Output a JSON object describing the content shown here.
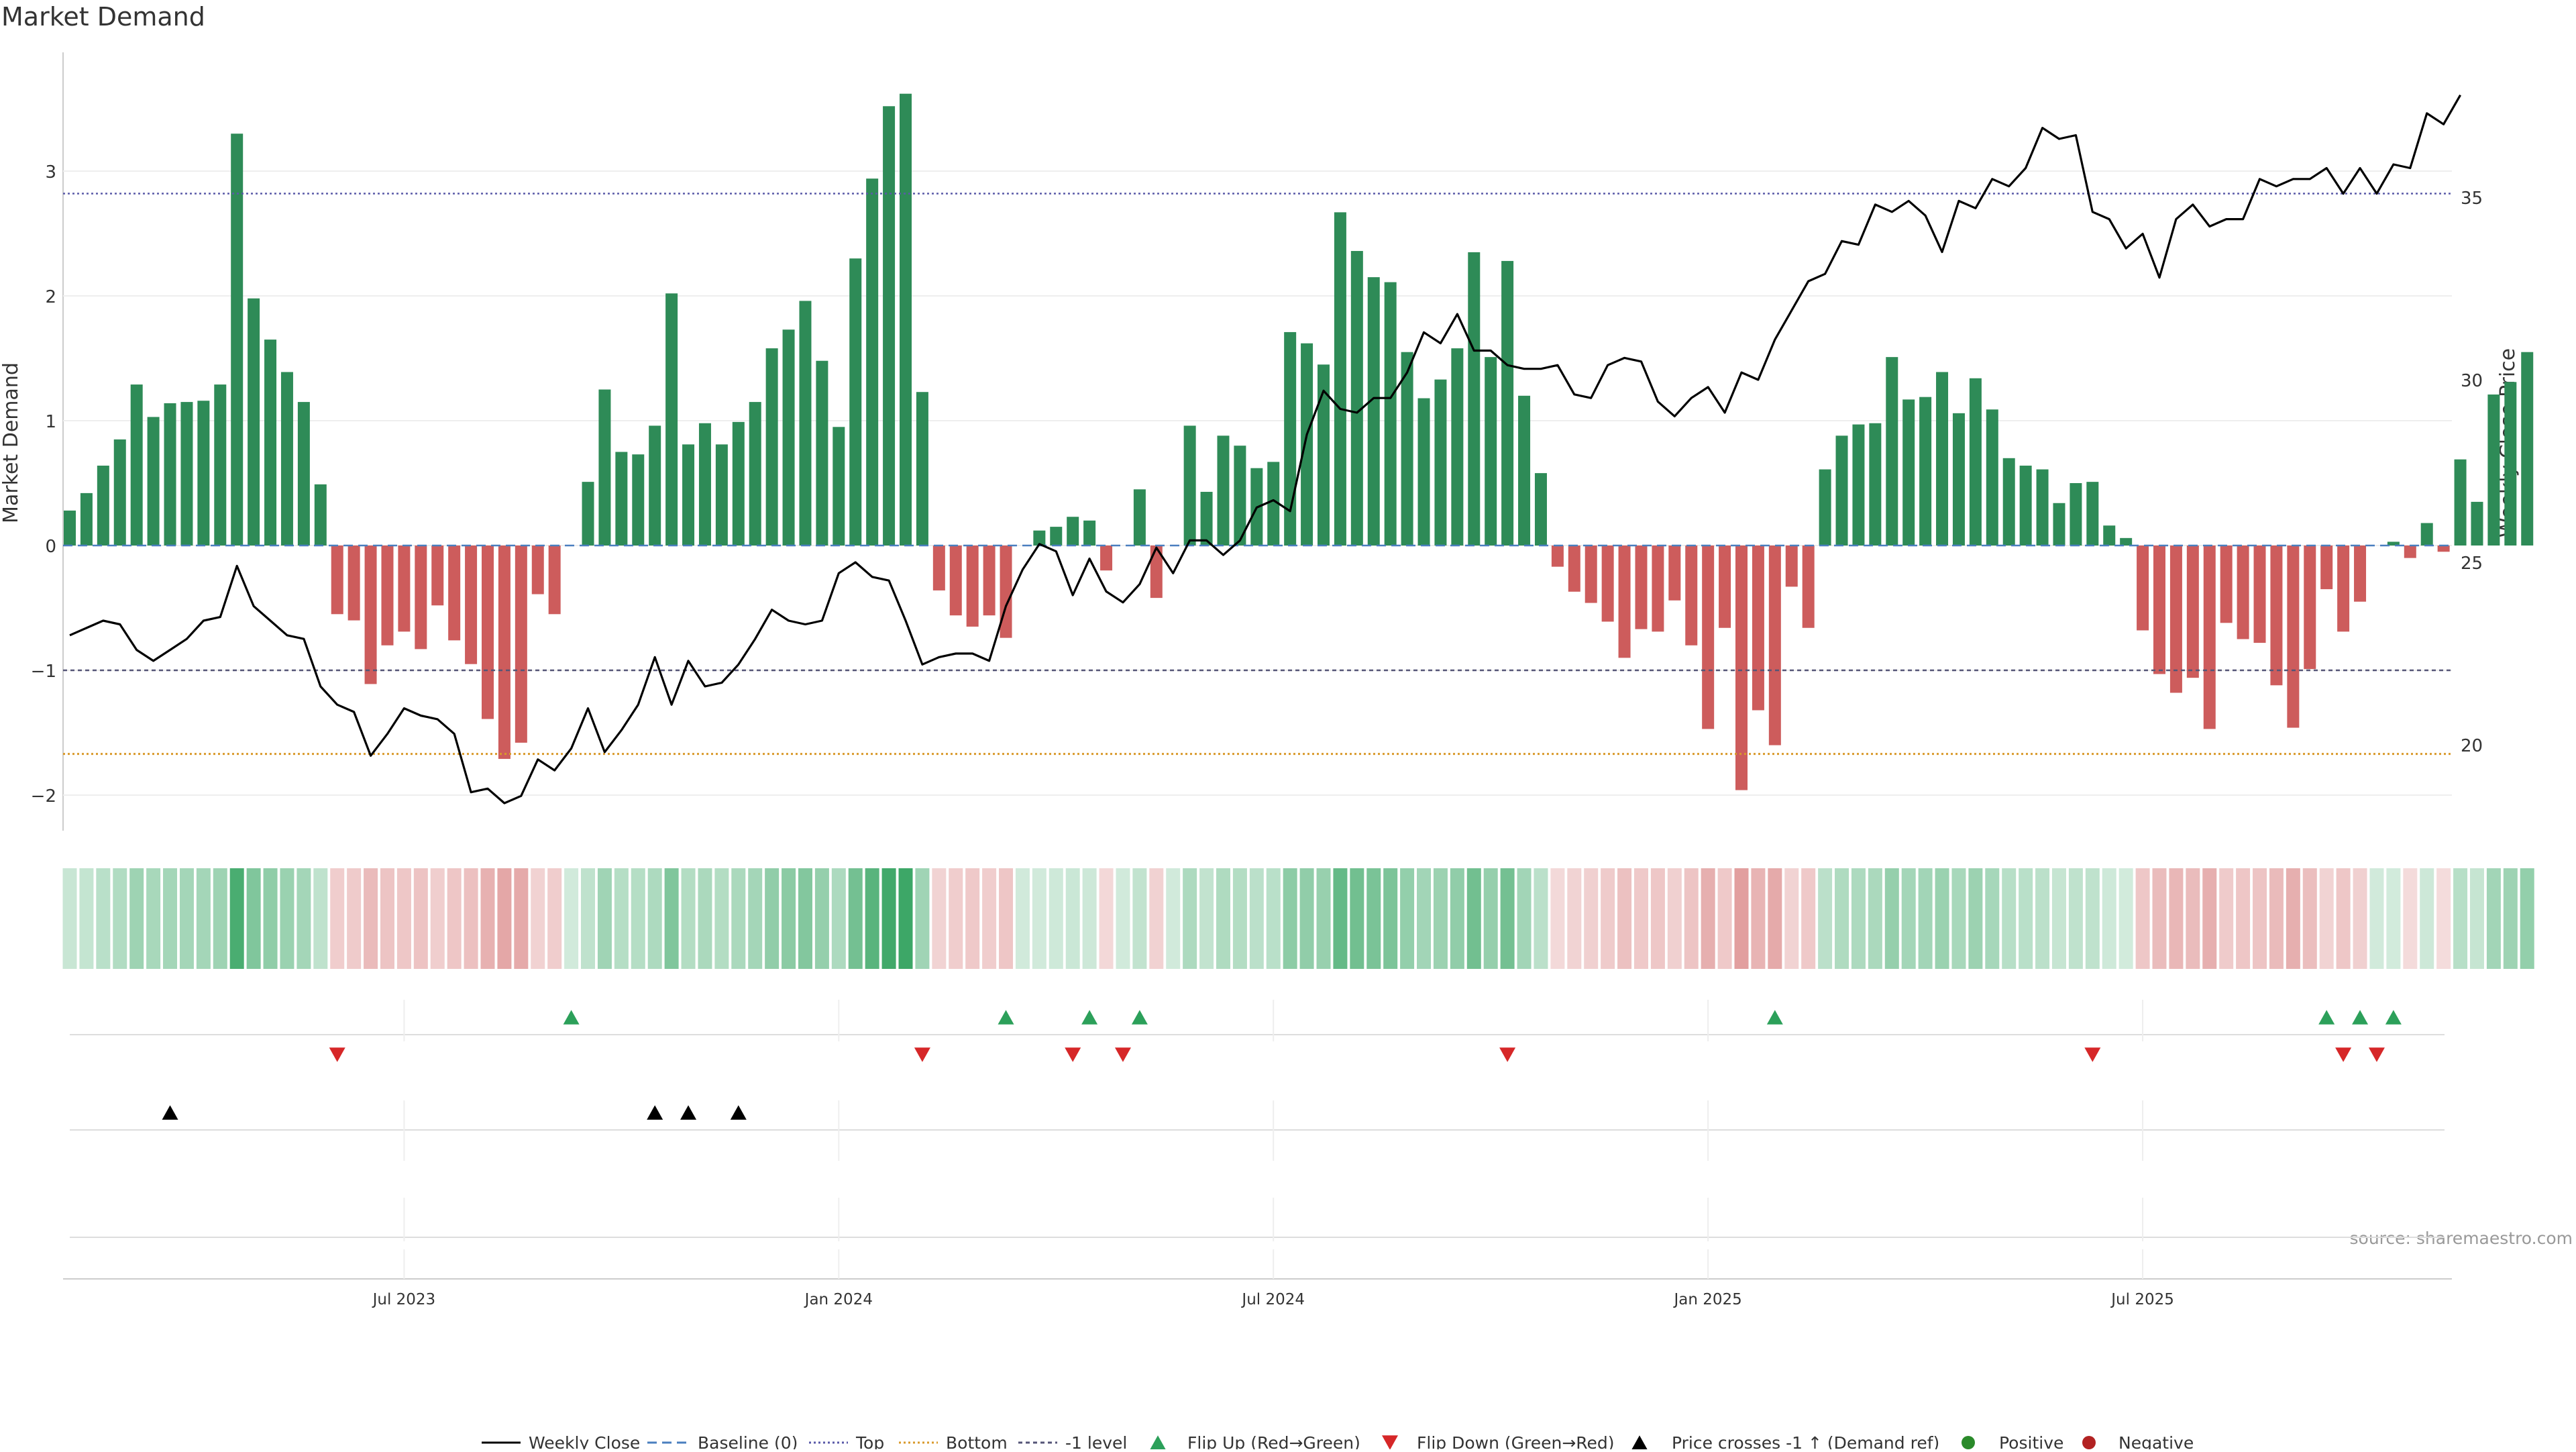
{
  "chart_data": {
    "type": "bar",
    "title": "Market Demand",
    "ylabel": "Market Demand",
    "y2label": "Weekly Close Price",
    "source": "source: sharemaestro.com",
    "ylim": [
      -2.25,
      3.95
    ],
    "y2lim": [
      18.0,
      39.25
    ],
    "yticks": [
      -2,
      -1,
      0,
      1,
      2,
      3
    ],
    "y2ticks": [
      20,
      25,
      30,
      35
    ],
    "yticklabels": [
      "−2",
      "−1",
      "0",
      "1",
      "2",
      "3"
    ],
    "y2ticklabels": [
      "20",
      "25",
      "30",
      "35"
    ],
    "levels": {
      "top": 2.82,
      "bottom": -1.67,
      "minus_one": -1.0,
      "baseline": 0
    },
    "xticks": [
      {
        "index": 20,
        "label": "Jul 2023"
      },
      {
        "index": 46,
        "label": "Jan 2024"
      },
      {
        "index": 72,
        "label": "Jul 2024"
      },
      {
        "index": 98,
        "label": "Jan 2025"
      },
      {
        "index": 124,
        "label": "Jul 2025"
      }
    ],
    "demand": [
      0.28,
      0.42,
      0.64,
      0.85,
      1.29,
      1.03,
      1.14,
      1.15,
      1.16,
      1.29,
      3.3,
      1.98,
      1.65,
      1.39,
      1.15,
      0.49,
      -0.55,
      -0.6,
      -1.11,
      -0.8,
      -0.69,
      -0.83,
      -0.48,
      -0.76,
      -0.95,
      -1.39,
      -1.71,
      -1.58,
      -0.39,
      -0.55,
      0,
      0.51,
      1.25,
      0.75,
      0.73,
      0.96,
      2.02,
      0.81,
      0.98,
      0.81,
      0.99,
      1.15,
      1.58,
      1.73,
      1.96,
      1.48,
      0.95,
      2.3,
      2.94,
      3.52,
      3.62,
      1.23,
      -0.36,
      -0.56,
      -0.65,
      -0.56,
      -0.74,
      0,
      0.12,
      0.15,
      0.23,
      0.2,
      -0.2,
      0,
      0.45,
      -0.42,
      0,
      0.96,
      0.43,
      0.88,
      0.8,
      0.62,
      0.67,
      1.71,
      1.62,
      1.45,
      2.67,
      2.36,
      2.15,
      2.11,
      1.55,
      1.18,
      1.33,
      1.58,
      2.35,
      1.51,
      2.28,
      1.2,
      0.58,
      -0.17,
      -0.37,
      -0.46,
      -0.61,
      -0.9,
      -0.67,
      -0.69,
      -0.44,
      -0.8,
      -1.47,
      -0.66,
      -1.96,
      -1.32,
      -1.6,
      -0.33,
      -0.66,
      0.61,
      0.88,
      0.97,
      0.98,
      1.51,
      1.17,
      1.19,
      1.39,
      1.06,
      1.34,
      1.09,
      0.7,
      0.64,
      0.61,
      0.34,
      0.5,
      0.51,
      0.16,
      0.06,
      -0.68,
      -1.03,
      -1.18,
      -1.06,
      -1.47,
      -0.62,
      -0.75,
      -0.78,
      -1.12,
      -1.46,
      -0.99,
      -0.35,
      -0.69,
      -0.45,
      0,
      0.03,
      -0.1,
      0.18,
      -0.05,
      0.69,
      0.35,
      1.21,
      1.31,
      1.55
    ],
    "price": [
      23.0,
      23.2,
      23.4,
      23.3,
      22.6,
      22.3,
      22.6,
      22.9,
      23.4,
      23.5,
      24.9,
      23.8,
      23.4,
      23.0,
      22.9,
      21.6,
      21.1,
      20.9,
      19.7,
      20.3,
      21.0,
      20.8,
      20.7,
      20.3,
      18.7,
      18.8,
      18.4,
      18.6,
      19.6,
      19.3,
      19.9,
      21.0,
      19.8,
      20.4,
      21.1,
      22.4,
      21.1,
      22.3,
      21.6,
      21.7,
      22.2,
      22.9,
      23.7,
      23.4,
      23.3,
      23.4,
      24.7,
      25.0,
      24.6,
      24.5,
      23.4,
      22.2,
      22.4,
      22.5,
      22.5,
      22.3,
      23.8,
      24.8,
      25.5,
      25.3,
      24.1,
      25.1,
      24.2,
      23.9,
      24.4,
      25.4,
      24.7,
      25.6,
      25.6,
      25.2,
      25.6,
      26.5,
      26.7,
      26.4,
      28.5,
      29.7,
      29.2,
      29.1,
      29.5,
      29.5,
      30.2,
      31.3,
      31.0,
      31.8,
      30.8,
      30.8,
      30.4,
      30.3,
      30.3,
      30.4,
      29.6,
      29.5,
      30.4,
      30.6,
      30.5,
      29.4,
      29.0,
      29.5,
      29.8,
      29.1,
      30.2,
      30.0,
      31.1,
      31.9,
      32.7,
      32.9,
      33.8,
      33.7,
      34.8,
      34.6,
      34.9,
      34.5,
      33.5,
      34.9,
      34.7,
      35.5,
      35.3,
      35.8,
      36.9,
      36.6,
      36.7,
      34.6,
      34.4,
      33.6,
      34.0,
      32.8,
      34.4,
      34.8,
      34.2,
      34.4,
      34.4,
      35.5,
      35.3,
      35.5,
      35.5,
      35.8,
      35.1,
      35.8,
      35.1,
      35.9,
      35.8,
      37.3,
      37.0,
      37.8
    ],
    "flip_up": [
      30,
      56,
      61,
      64,
      102,
      135,
      137,
      139
    ],
    "flip_down": [
      16,
      51,
      60,
      63,
      86,
      121,
      136,
      138
    ],
    "price_cross": [
      6,
      35,
      37,
      40
    ],
    "legend": [
      "Weekly Close",
      "Baseline (0)",
      "Top",
      "Bottom",
      "-1 level",
      "Flip Up (Red→Green)",
      "Flip Down (Green→Red)",
      "Price crosses -1 ↑ (Demand ref)",
      "Positive",
      "Negative"
    ],
    "colors": {
      "positive": "#2e8b57",
      "negative": "#cd5c5c",
      "price": "#000000",
      "baseline": "#4a7fbf",
      "top": "#5a5aa8",
      "bottom": "#d99a2b",
      "minus_one": "#555577",
      "flip_up": "#2ca05a",
      "flip_down": "#d62728",
      "cross": "#000000",
      "legend_positive": "#2a8a2a",
      "legend_negative": "#b22222"
    }
  }
}
